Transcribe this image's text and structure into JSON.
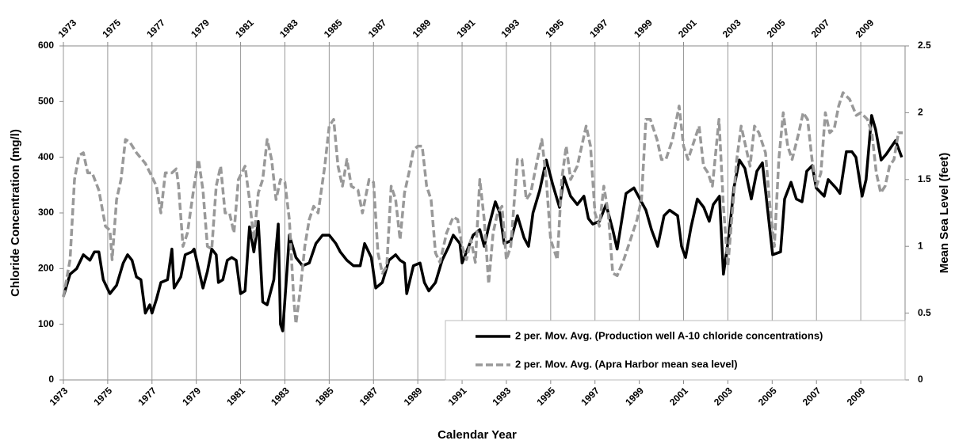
{
  "chart_data": {
    "type": "line",
    "x_label": "Calendar Year",
    "y_label": "Chloride Concentration (mg/l)",
    "y2_label": "Mean Sea Level (feet)",
    "xlim": [
      1973,
      2011
    ],
    "xticks": [
      1973,
      1975,
      1977,
      1979,
      1981,
      1983,
      1985,
      1987,
      1989,
      1991,
      1993,
      1995,
      1997,
      1999,
      2001,
      2003,
      2005,
      2007,
      2009
    ],
    "top_xticks": [
      1973,
      1975,
      1977,
      1979,
      1981,
      1983,
      1985,
      1987,
      1989,
      1991,
      1993,
      1995,
      1997,
      1999,
      2001,
      2003,
      2005,
      2007,
      2009
    ],
    "ylim": [
      0,
      600
    ],
    "yticks": [
      0,
      100,
      200,
      300,
      400,
      500,
      600
    ],
    "y2lim": [
      0,
      2.5
    ],
    "y2ticks": [
      0,
      0.5,
      1,
      1.5,
      2,
      2.5
    ],
    "grid": "x",
    "legend": "lower right",
    "series": [
      {
        "name": "2 per. Mov. Avg. (Production well A-10 chloride concentrations)",
        "color": "#000000",
        "dashed": false,
        "x": [
          1973.0,
          1973.3,
          1973.6,
          1973.9,
          1974.2,
          1974.4,
          1974.6,
          1974.8,
          1975.1,
          1975.4,
          1975.7,
          1975.9,
          1976.1,
          1976.3,
          1976.5,
          1976.7,
          1976.9,
          1977.0,
          1977.2,
          1977.4,
          1977.7,
          1977.9,
          1978.0,
          1978.3,
          1978.5,
          1978.8,
          1978.9,
          1979.1,
          1979.3,
          1979.5,
          1979.7,
          1979.9,
          1980.0,
          1980.2,
          1980.4,
          1980.6,
          1980.8,
          1981.0,
          1981.2,
          1981.4,
          1981.6,
          1981.8,
          1982.0,
          1982.2,
          1982.5,
          1982.6,
          1982.7,
          1982.8,
          1982.9,
          1983.1,
          1983.2,
          1983.5,
          1983.8,
          1984.1,
          1984.4,
          1984.7,
          1985.0,
          1985.3,
          1985.5,
          1985.8,
          1986.1,
          1986.4,
          1986.6,
          1986.9,
          1987.1,
          1987.4,
          1987.7,
          1988.0,
          1988.2,
          1988.4,
          1988.5,
          1988.8,
          1989.1,
          1989.3,
          1989.5,
          1989.8,
          1990.1,
          1990.4,
          1990.6,
          1990.9,
          1991.0,
          1991.2,
          1991.5,
          1991.8,
          1992.0,
          1992.2,
          1992.5,
          1992.7,
          1992.9,
          1993.2,
          1993.5,
          1993.8,
          1994.0,
          1994.2,
          1994.5,
          1994.8,
          1995.1,
          1995.4,
          1995.6,
          1995.9,
          1996.2,
          1996.5,
          1996.7,
          1996.9,
          1997.2,
          1997.5,
          1997.8,
          1998.0,
          1998.2,
          1998.4,
          1998.76,
          1999.3,
          1999.55,
          1999.83,
          2000.12,
          2000.37,
          2000.73,
          2000.91,
          2001.09,
          2001.34,
          2001.62,
          2001.91,
          2002.16,
          2002.34,
          2002.62,
          2002.8,
          2003.05,
          2003.27,
          2003.52,
          2003.77,
          2004.06,
          2004.31,
          2004.56,
          2005.02,
          2005.38,
          2005.56,
          2005.85,
          2006.09,
          2006.35,
          2006.56,
          2006.81,
          2006.99,
          2007.35,
          2007.53,
          2007.88,
          2008.06,
          2008.35,
          2008.6,
          2008.78,
          2009.06,
          2009.24,
          2009.49,
          2009.67,
          2009.92,
          2010.14,
          2010.57,
          2010.85
        ],
        "values": [
          150,
          190,
          200,
          225,
          215,
          230,
          230,
          180,
          155,
          170,
          210,
          225,
          215,
          185,
          180,
          120,
          135,
          120,
          145,
          175,
          180,
          235,
          165,
          185,
          225,
          230,
          235,
          200,
          165,
          195,
          235,
          225,
          175,
          180,
          215,
          220,
          215,
          155,
          160,
          275,
          230,
          285,
          140,
          135,
          180,
          235,
          280,
          100,
          88,
          200,
          260,
          220,
          205,
          210,
          245,
          260,
          260,
          245,
          230,
          215,
          205,
          205,
          245,
          220,
          165,
          175,
          215,
          225,
          215,
          210,
          155,
          205,
          210,
          175,
          160,
          175,
          215,
          240,
          260,
          245,
          210,
          230,
          260,
          270,
          240,
          275,
          320,
          300,
          245,
          250,
          295,
          255,
          240,
          300,
          340,
          395,
          350,
          310,
          365,
          330,
          315,
          330,
          290,
          280,
          285,
          315,
          270,
          235,
          285,
          335,
          345,
          305,
          270,
          240,
          295,
          305,
          295,
          240,
          220,
          275,
          325,
          310,
          285,
          315,
          330,
          190,
          260,
          345,
          395,
          380,
          325,
          375,
          390,
          225,
          230,
          325,
          355,
          325,
          320,
          375,
          385,
          345,
          330,
          360,
          345,
          335,
          410,
          410,
          400,
          330,
          360,
          475,
          450,
          395,
          405,
          430,
          400
        ]
      },
      {
        "name": "2 per. Mov. Avg. (Apra Harbor mean sea level)",
        "color": "#999999",
        "dashed": true,
        "axis": "y2",
        "x": [
          1973.0,
          1973.3,
          1973.5,
          1973.7,
          1973.9,
          1974.1,
          1974.3,
          1974.6,
          1974.9,
          1975.1,
          1975.2,
          1975.4,
          1975.6,
          1975.8,
          1976.0,
          1976.3,
          1976.7,
          1977.0,
          1977.2,
          1977.4,
          1977.6,
          1977.9,
          1978.1,
          1978.2,
          1978.4,
          1978.6,
          1978.9,
          1979.1,
          1979.3,
          1979.5,
          1979.7,
          1979.9,
          1980.1,
          1980.3,
          1980.5,
          1980.7,
          1980.9,
          1981.2,
          1981.4,
          1981.6,
          1981.8,
          1982.0,
          1982.2,
          1982.4,
          1982.6,
          1982.8,
          1983.0,
          1983.2,
          1983.4,
          1983.5,
          1983.7,
          1983.9,
          1984.1,
          1984.3,
          1984.5,
          1984.8,
          1985.0,
          1985.2,
          1985.4,
          1985.6,
          1985.8,
          1986.0,
          1986.3,
          1986.5,
          1986.8,
          1987.0,
          1987.2,
          1987.4,
          1987.6,
          1987.8,
          1988.0,
          1988.2,
          1988.4,
          1988.6,
          1988.8,
          1989.0,
          1989.2,
          1989.4,
          1989.6,
          1989.8,
          1990.0,
          1990.3,
          1990.6,
          1990.8,
          1991.0,
          1991.2,
          1991.4,
          1991.6,
          1991.8,
          1992.0,
          1992.2,
          1992.4,
          1992.6,
          1992.8,
          1993.0,
          1993.2,
          1993.5,
          1993.7,
          1993.9,
          1994.1,
          1994.4,
          1994.6,
          1994.8,
          1995.0,
          1995.3,
          1995.5,
          1995.7,
          1995.9,
          1996.2,
          1996.4,
          1996.6,
          1996.8,
          1997.0,
          1997.2,
          1997.4,
          1997.6,
          1997.8,
          1998.0,
          1998.3,
          1998.6,
          1998.9,
          1999.1,
          1999.3,
          1999.5,
          1999.8,
          2000.0,
          2000.2,
          2000.5,
          2000.8,
          2001.0,
          2001.2,
          2001.4,
          2001.7,
          2001.9,
          2002.1,
          2002.3,
          2002.6,
          2002.8,
          2003.0,
          2003.2,
          2003.4,
          2003.6,
          2003.8,
          2004.0,
          2004.2,
          2004.4,
          2004.7,
          2004.9,
          2005.1,
          2005.3,
          2005.5,
          2005.7,
          2005.9,
          2006.2,
          2006.4,
          2006.6,
          2006.8,
          2007.0,
          2007.2,
          2007.4,
          2007.6,
          2007.8,
          2008.0,
          2008.2,
          2008.5,
          2008.8,
          2009.0,
          2009.3,
          2009.5,
          2009.7,
          2009.9,
          2010.1,
          2010.3,
          2010.5,
          2010.7,
          2010.9
        ],
        "values": [
          0.62,
          0.9,
          1.5,
          1.68,
          1.7,
          1.55,
          1.55,
          1.42,
          1.15,
          1.12,
          0.9,
          1.35,
          1.5,
          1.8,
          1.78,
          1.7,
          1.62,
          1.52,
          1.45,
          1.25,
          1.55,
          1.55,
          1.58,
          1.45,
          1.0,
          1.1,
          1.45,
          1.65,
          1.42,
          1.0,
          0.98,
          1.45,
          1.6,
          1.25,
          1.25,
          1.1,
          1.5,
          1.6,
          1.35,
          1.05,
          1.4,
          1.5,
          1.8,
          1.65,
          1.35,
          1.5,
          1.48,
          1.2,
          0.6,
          0.42,
          0.68,
          1.0,
          1.2,
          1.3,
          1.25,
          1.6,
          1.9,
          1.95,
          1.6,
          1.45,
          1.65,
          1.45,
          1.42,
          1.25,
          1.5,
          1.48,
          0.95,
          0.8,
          0.85,
          1.45,
          1.35,
          1.05,
          1.4,
          1.55,
          1.72,
          1.75,
          1.75,
          1.45,
          1.35,
          0.95,
          0.88,
          1.1,
          1.22,
          1.2,
          1.0,
          0.9,
          1.05,
          0.88,
          1.5,
          1.2,
          0.72,
          1.1,
          1.25,
          1.3,
          0.9,
          1.0,
          1.65,
          1.65,
          1.35,
          1.4,
          1.65,
          1.8,
          1.5,
          1.05,
          0.9,
          1.5,
          1.75,
          1.5,
          1.6,
          1.75,
          1.9,
          1.75,
          1.25,
          1.15,
          1.45,
          1.25,
          0.8,
          0.78,
          0.9,
          1.05,
          1.2,
          1.35,
          1.95,
          1.95,
          1.8,
          1.65,
          1.65,
          1.8,
          2.05,
          1.75,
          1.65,
          1.75,
          1.9,
          1.6,
          1.55,
          1.45,
          1.95,
          1.3,
          0.85,
          1.25,
          1.65,
          1.9,
          1.75,
          1.6,
          1.9,
          1.85,
          1.7,
          1.3,
          1.0,
          1.65,
          2.0,
          1.75,
          1.65,
          1.85,
          2.0,
          1.95,
          1.65,
          1.45,
          1.55,
          2.0,
          1.85,
          1.88,
          2.05,
          2.15,
          2.1,
          1.98,
          2.0,
          1.95,
          1.85,
          1.55,
          1.4,
          1.45,
          1.6,
          1.65,
          1.85,
          1.85
        ]
      }
    ]
  }
}
